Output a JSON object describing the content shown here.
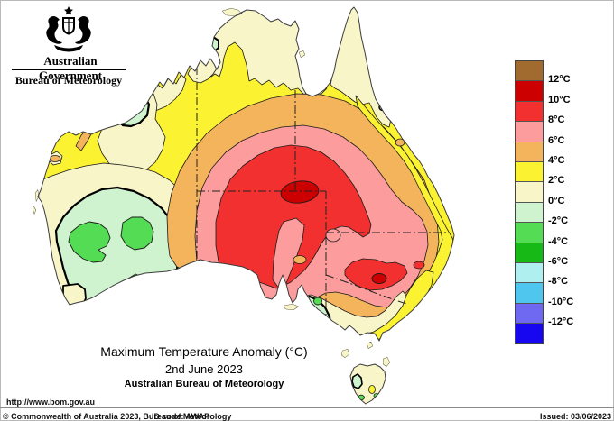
{
  "header": {
    "government": "Australian Government",
    "agency": "Bureau of Meteorology"
  },
  "titles": {
    "title": "Maximum Temperature Anomaly (°C)",
    "date": "2nd June 2023",
    "source": "Australian Bureau of Meteorology",
    "url": "http://www.bom.gov.au"
  },
  "legend": {
    "colors": [
      "#A16A2E",
      "#CC0000",
      "#F23030",
      "#FC9C9C",
      "#F4B45C",
      "#FBF232",
      "#F8F5C8",
      "#CEF3CE",
      "#55DC55",
      "#17B917",
      "#B0EFEF",
      "#4EC6EE",
      "#6F68F0",
      "#1607F0"
    ],
    "labels": [
      "12°C",
      "10°C",
      "8°C",
      "6°C",
      "4°C",
      "2°C",
      "0°C",
      "-2°C",
      "-4°C",
      "-6°C",
      "-8°C",
      "-10°C",
      "-12°C"
    ]
  },
  "footer": {
    "copyright": "© Commonwealth of Australia 2023, Bureau of Meteorology",
    "id_code": "ID code: AWAP",
    "issued": "Issued: 03/06/2023"
  }
}
